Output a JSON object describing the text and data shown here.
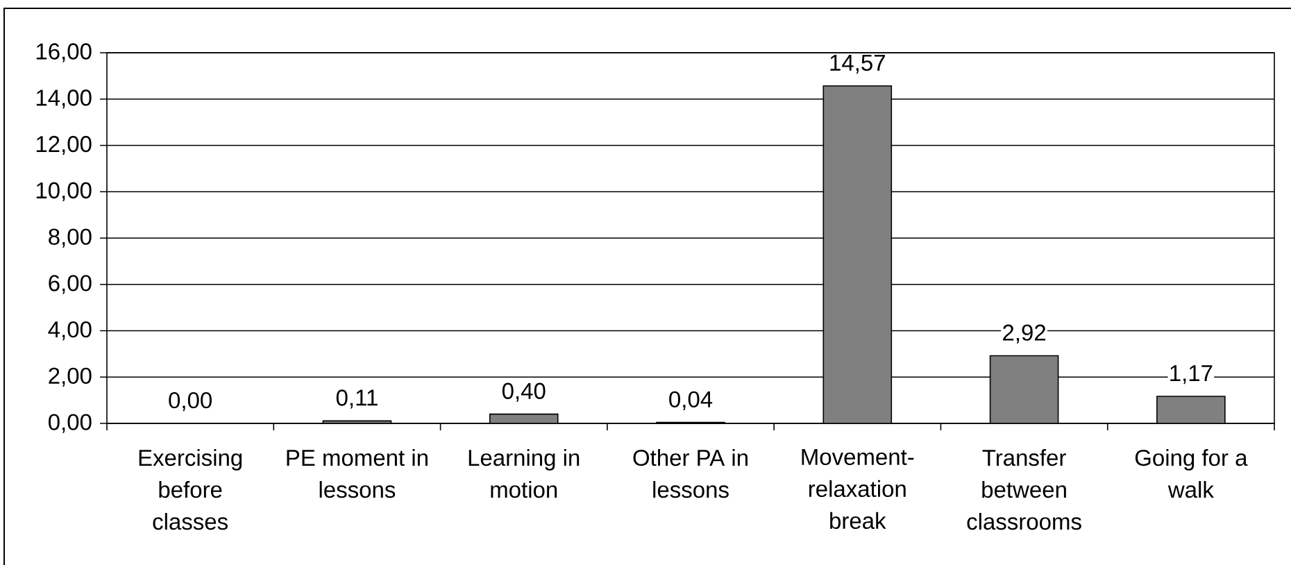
{
  "chart_data": {
    "type": "bar",
    "categories": [
      "Exercising before classes",
      "PE moment in lessons",
      "Learning in motion",
      "Other PA in lessons",
      "Movement-relaxation break",
      "Transfer between classrooms",
      "Going for a walk"
    ],
    "values": [
      0.0,
      0.11,
      0.4,
      0.04,
      14.57,
      2.92,
      1.17
    ],
    "value_labels": [
      "0,00",
      "0,11",
      "0,40",
      "0,04",
      "14,57",
      "2,92",
      "1,17"
    ],
    "color": "#808080",
    "ylim": [
      0,
      16
    ],
    "yticks": [
      {
        "value": 0,
        "label": "0,00"
      },
      {
        "value": 2,
        "label": "2,00"
      },
      {
        "value": 4,
        "label": "4,00"
      },
      {
        "value": 6,
        "label": "6,00"
      },
      {
        "value": 8,
        "label": "8,00"
      },
      {
        "value": 10,
        "label": "10,00"
      },
      {
        "value": 12,
        "label": "12,00"
      },
      {
        "value": 14,
        "label": "14,00"
      },
      {
        "value": 16,
        "label": "16,00"
      }
    ],
    "grid": "y"
  }
}
